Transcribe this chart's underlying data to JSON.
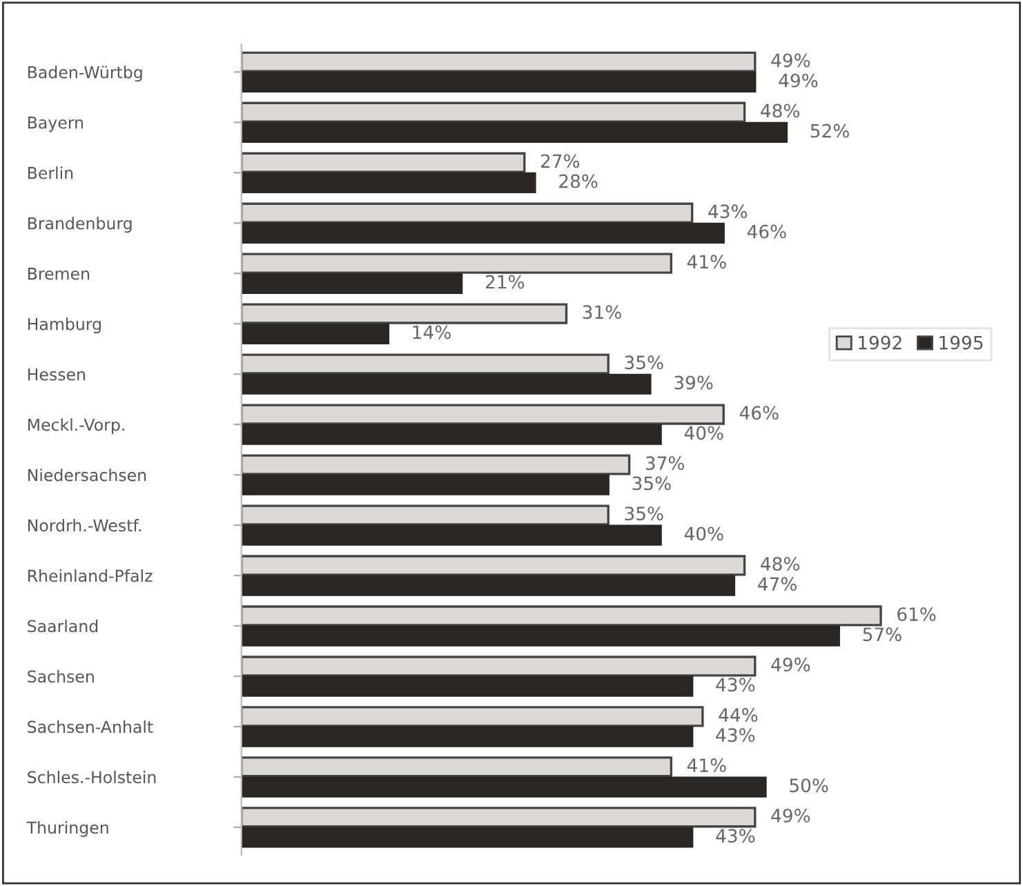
{
  "chart_data": {
    "type": "bar",
    "orientation": "horizontal",
    "categories": [
      "Baden-Würtbg",
      "Bayern",
      "Berlin",
      "Brandenburg",
      "Bremen",
      "Hamburg",
      "Hessen",
      "Meckl.-Vorp.",
      "Niedersachsen",
      "Nordrh.-Westf.",
      "Rheinland-Pfalz",
      "Saarland",
      "Sachsen",
      "Sachsen-Anhalt",
      "Schles.-Holstein",
      "Thuringen"
    ],
    "series": [
      {
        "name": "1992",
        "color": "#dcd9d9",
        "values": [
          49,
          48,
          27,
          43,
          41,
          31,
          35,
          46,
          37,
          35,
          48,
          61,
          49,
          44,
          41,
          49
        ],
        "value_labels": [
          "49%",
          "48%",
          "27%",
          "43%",
          "41%",
          "31%",
          "35%",
          "46%",
          "37%",
          "35%",
          "48%",
          "61%",
          "49%",
          "44%",
          "41%",
          "49%"
        ]
      },
      {
        "name": "1995",
        "color": "#2b2626",
        "values": [
          49,
          52,
          28,
          46,
          21,
          14,
          39,
          40,
          35,
          40,
          47,
          57,
          43,
          43,
          50,
          43
        ],
        "value_labels": [
          "49%",
          "52%",
          "28%",
          "46%",
          "21%",
          "14%",
          "39%",
          "40%",
          "35%",
          "40%",
          "47%",
          "57%",
          "43%",
          "43%",
          "50%",
          "43%"
        ]
      }
    ],
    "legend": "right",
    "tick_labels": "y",
    "grid": false
  }
}
